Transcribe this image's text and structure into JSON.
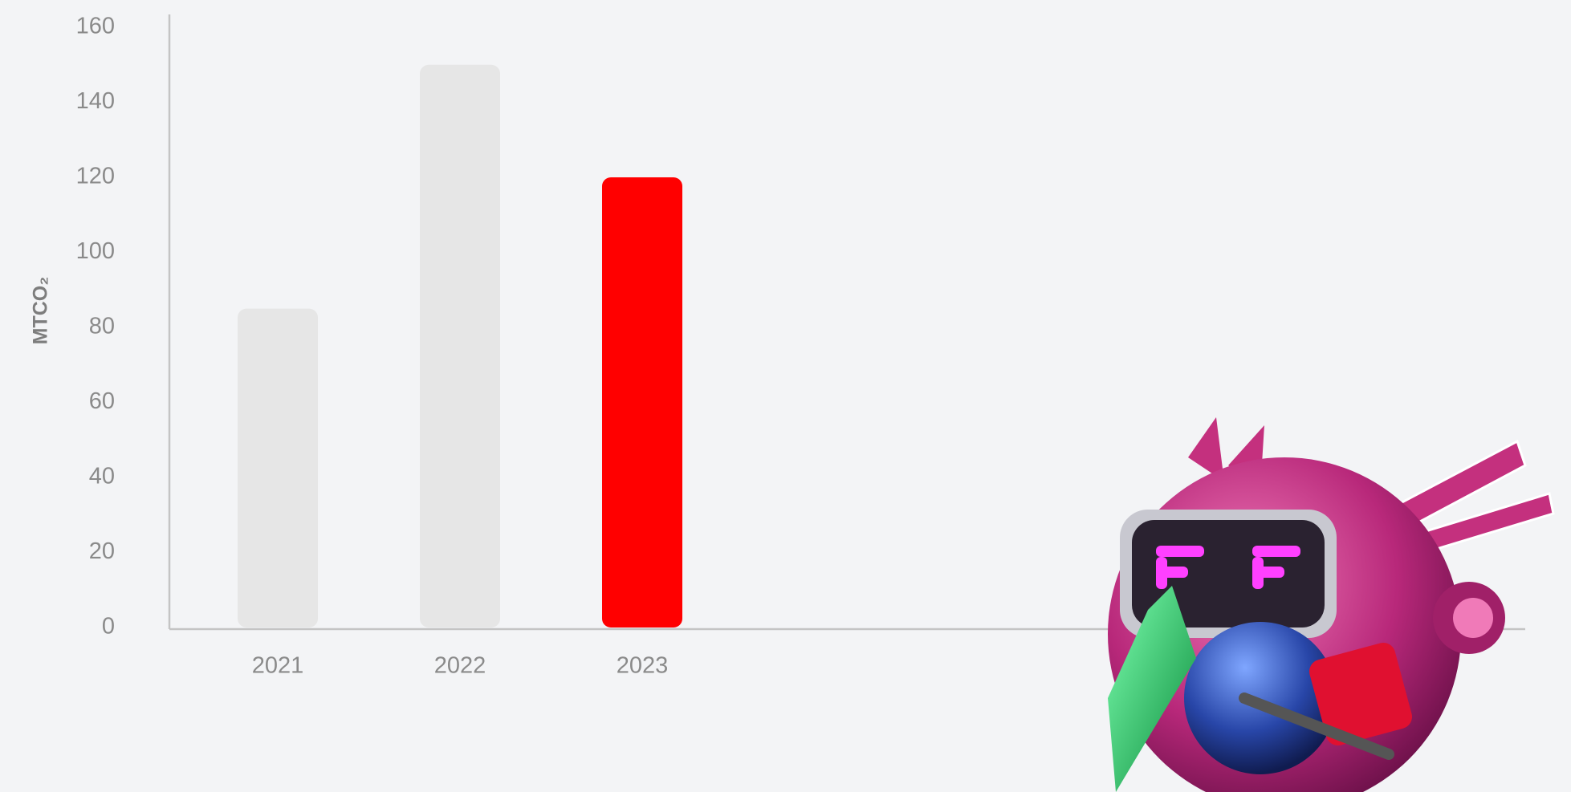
{
  "chart_data": {
    "type": "bar",
    "y_label": "MTCO₂",
    "categories": [
      "2021",
      "2022",
      "2023"
    ],
    "values": [
      85,
      150,
      120
    ],
    "colors": [
      "#e6e6e6",
      "#e6e6e6",
      "#ff0000"
    ],
    "ylim": [
      0,
      160
    ],
    "yticks": [
      0,
      20,
      40,
      60,
      80,
      100,
      120,
      140,
      160
    ],
    "grid": false
  }
}
